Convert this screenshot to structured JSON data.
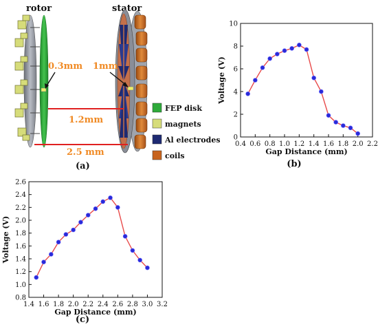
{
  "diagram": {
    "rotor_label": "rotor",
    "stator_label": "stator",
    "dim_small_rotor": "0.3mm",
    "dim_small_stator": "1mm",
    "dim_mid": "1.2mm",
    "dim_long": "2.5 mm",
    "panel_label": "(a)",
    "legend": [
      {
        "label": "FEP disk",
        "color": "#2eaa3a"
      },
      {
        "label": "magnets",
        "color": "#d6dc7a"
      },
      {
        "label": "Al electrodes",
        "color": "#1e2a72"
      },
      {
        "label": "coils",
        "color": "#c8641e"
      }
    ],
    "colors": {
      "dimension_text": "#f08a24",
      "dimension_line": "#e02020",
      "disk": "#9a9ea8"
    }
  },
  "chart_data": [
    {
      "type": "line",
      "panel_label": "(b)",
      "xlabel": "Gap Distance (mm)",
      "ylabel": "Voltage (V)",
      "xlim": [
        0.4,
        2.2
      ],
      "ylim": [
        0,
        10
      ],
      "xticks": [
        "0.4",
        "0.6",
        "0.8",
        "1.0",
        "1.2",
        "1.4",
        "1.6",
        "1.8",
        "2.0",
        "2.2"
      ],
      "yticks": [
        "0",
        "2",
        "4",
        "6",
        "8",
        "10"
      ],
      "line_color": "#e84a4a",
      "marker_color": "#2a2ad8",
      "x": [
        0.5,
        0.6,
        0.7,
        0.8,
        0.9,
        1.0,
        1.1,
        1.2,
        1.3,
        1.4,
        1.5,
        1.6,
        1.7,
        1.8,
        1.9,
        2.0
      ],
      "y": [
        3.8,
        5.0,
        6.1,
        6.9,
        7.3,
        7.6,
        7.8,
        8.1,
        7.7,
        5.2,
        4.0,
        1.9,
        1.3,
        1.0,
        0.8,
        0.3
      ]
    },
    {
      "type": "line",
      "panel_label": "(c)",
      "xlabel": "Gap Distance (mm)",
      "ylabel": "Voltage (V)",
      "xlim": [
        1.4,
        3.2
      ],
      "ylim": [
        0.8,
        2.6
      ],
      "xticks": [
        "1.4",
        "1.6",
        "1.8",
        "2.0",
        "2.2",
        "2.4",
        "2.6",
        "2.8",
        "3.0",
        "3.2"
      ],
      "yticks": [
        "0.8",
        "1.0",
        "1.2",
        "1.4",
        "1.6",
        "1.8",
        "2.0",
        "2.2",
        "2.4",
        "2.6"
      ],
      "line_color": "#e84a4a",
      "marker_color": "#2a2ad8",
      "x": [
        1.5,
        1.6,
        1.7,
        1.8,
        1.9,
        2.0,
        2.1,
        2.2,
        2.3,
        2.4,
        2.5,
        2.6,
        2.7,
        2.8,
        2.9,
        3.0
      ],
      "y": [
        1.11,
        1.35,
        1.47,
        1.66,
        1.78,
        1.85,
        1.97,
        2.08,
        2.18,
        2.29,
        2.35,
        2.2,
        1.75,
        1.53,
        1.38,
        1.26
      ]
    }
  ]
}
